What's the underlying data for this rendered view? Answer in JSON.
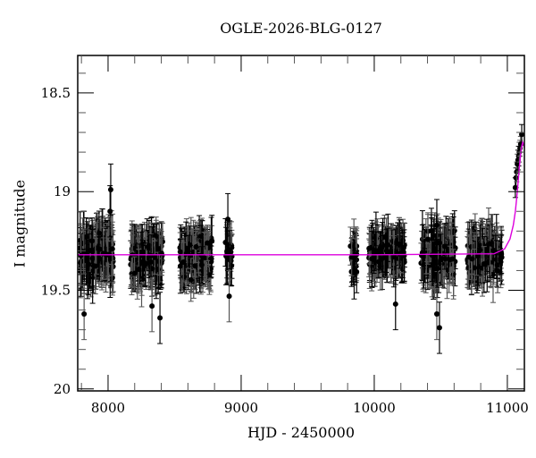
{
  "chart_data": {
    "type": "scatter",
    "title": "OGLE-2026-BLG-0127",
    "xlabel": "HJD - 2450000",
    "ylabel": "I magnitude",
    "xlim": [
      7772,
      11128
    ],
    "ylim": [
      20.01,
      18.31
    ],
    "y_inverted": true,
    "xticks": [
      8000,
      9000,
      10000,
      11000
    ],
    "xtick_labels": [
      "8000",
      "9000",
      "10000",
      "11000"
    ],
    "x_minor_step": 200,
    "yticks": [
      18.5,
      19,
      19.5,
      20
    ],
    "ytick_labels": [
      "18.5",
      "19",
      "19.5",
      "20"
    ],
    "y_minor_step": 0.1,
    "grid": false,
    "legend": null,
    "colors": {
      "points": "#000000",
      "errorbars": "#000000",
      "model": "#dd00dd",
      "frame": "#000000"
    },
    "series": [
      {
        "name": "observations",
        "kind": "points_with_errorbars",
        "seasons": [
          {
            "x_range": [
              7790,
              8040
            ],
            "mean_mag": 19.32,
            "scatter": 0.12,
            "err": 0.12,
            "n": 160
          },
          {
            "x_range": [
              8170,
              8410
            ],
            "mean_mag": 19.33,
            "scatter": 0.11,
            "err": 0.11,
            "n": 150
          },
          {
            "x_range": [
              8540,
              8780
            ],
            "mean_mag": 19.33,
            "scatter": 0.11,
            "err": 0.11,
            "n": 150
          },
          {
            "x_range": [
              8880,
              8930
            ],
            "mean_mag": 19.32,
            "scatter": 0.12,
            "err": 0.12,
            "n": 18
          },
          {
            "x_range": [
              9820,
              9870
            ],
            "mean_mag": 19.34,
            "scatter": 0.1,
            "err": 0.1,
            "n": 30
          },
          {
            "x_range": [
              9960,
              10230
            ],
            "mean_mag": 19.31,
            "scatter": 0.1,
            "err": 0.11,
            "n": 110
          },
          {
            "x_range": [
              10350,
              10610
            ],
            "mean_mag": 19.32,
            "scatter": 0.12,
            "err": 0.12,
            "n": 110
          },
          {
            "x_range": [
              10700,
              10960
            ],
            "mean_mag": 19.32,
            "scatter": 0.11,
            "err": 0.11,
            "n": 140
          }
        ],
        "outliers": [
          {
            "x": 7820,
            "y": 19.62
          },
          {
            "x": 8020,
            "y": 18.99
          },
          {
            "x": 8015,
            "y": 19.1
          },
          {
            "x": 8330,
            "y": 19.58
          },
          {
            "x": 8390,
            "y": 19.64
          },
          {
            "x": 8780,
            "y": 19.25
          },
          {
            "x": 8900,
            "y": 19.14
          },
          {
            "x": 8910,
            "y": 19.53
          },
          {
            "x": 10470,
            "y": 19.62
          },
          {
            "x": 10490,
            "y": 19.69
          },
          {
            "x": 10470,
            "y": 19.17
          },
          {
            "x": 10160,
            "y": 19.57
          }
        ],
        "rise_points": [
          {
            "x": 11060,
            "y": 18.98,
            "err": 0.05
          },
          {
            "x": 11065,
            "y": 18.93,
            "err": 0.05
          },
          {
            "x": 11070,
            "y": 18.9,
            "err": 0.05
          },
          {
            "x": 11075,
            "y": 18.86,
            "err": 0.05
          },
          {
            "x": 11080,
            "y": 18.84,
            "err": 0.05
          },
          {
            "x": 11085,
            "y": 18.82,
            "err": 0.05
          },
          {
            "x": 11090,
            "y": 18.8,
            "err": 0.05
          },
          {
            "x": 11095,
            "y": 18.78,
            "err": 0.04
          },
          {
            "x": 11100,
            "y": 18.76,
            "err": 0.04
          },
          {
            "x": 11108,
            "y": 18.71,
            "err": 0.05
          }
        ]
      },
      {
        "name": "model",
        "kind": "line",
        "baseline_mag": 19.32,
        "peak_x": 11115,
        "peak_mag": 18.74,
        "x": [
          7772,
          9000,
          10000,
          10900,
          10980,
          11020,
          11045,
          11060,
          11075,
          11090,
          11100,
          11108,
          11115,
          11122,
          11128
        ],
        "y": [
          19.32,
          19.32,
          19.32,
          19.315,
          19.29,
          19.24,
          19.17,
          19.1,
          19.0,
          18.88,
          18.81,
          18.77,
          18.75,
          18.76,
          18.78
        ]
      }
    ]
  }
}
